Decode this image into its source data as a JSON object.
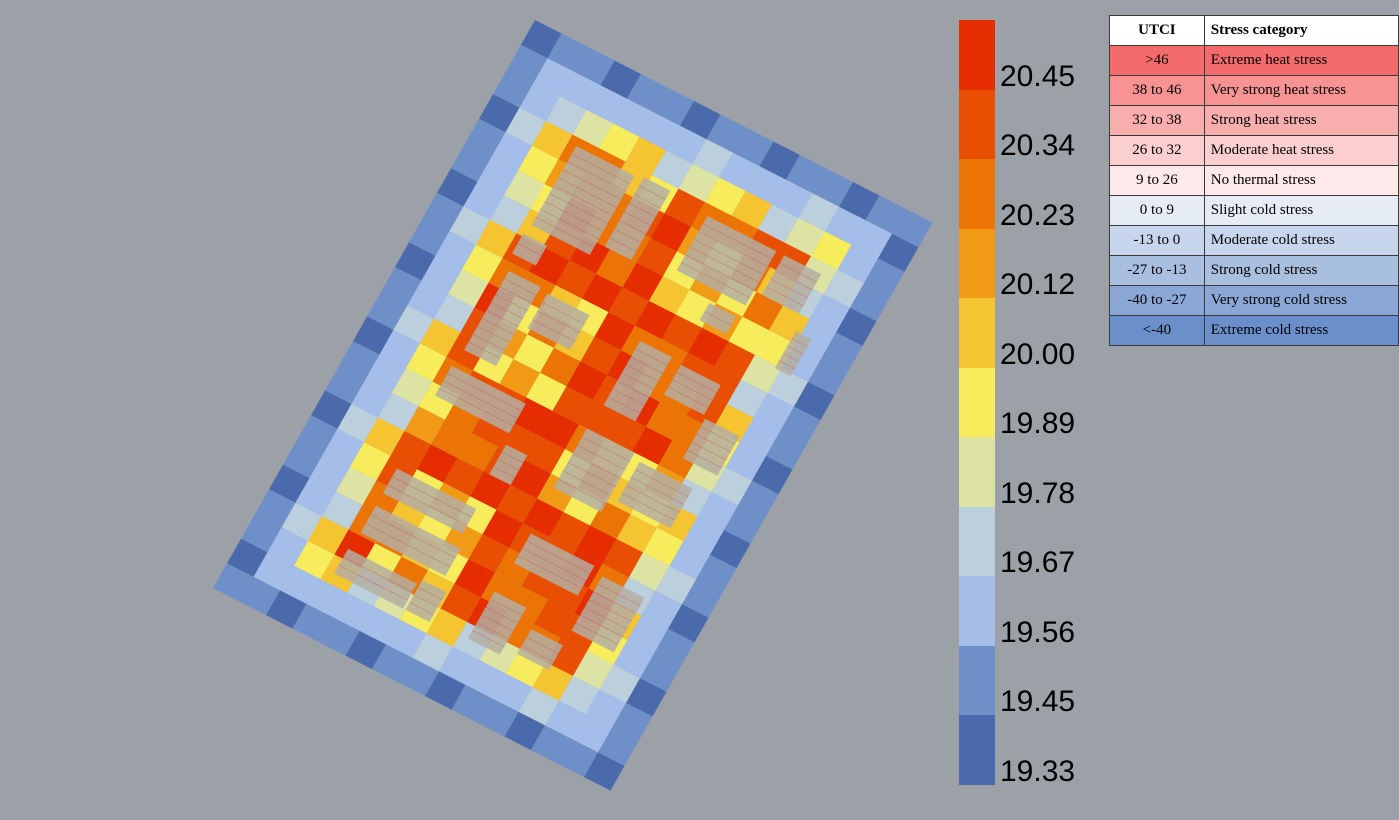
{
  "map": {
    "palette": [
      "#4b6aac",
      "#6f8fc8",
      "#a4bde9",
      "#bccfdc",
      "#dde3a2",
      "#f6ec5c",
      "#f5c431",
      "#f09a15",
      "#ec7405",
      "#e84f02",
      "#e62d00"
    ],
    "building_color": "#b4aea2"
  },
  "legend": {
    "colors": [
      "#e62d00",
      "#e84f02",
      "#ec7405",
      "#f09a15",
      "#f5c431",
      "#f6ec5c",
      "#dde3a2",
      "#bccfdc",
      "#a4bde9",
      "#6f8fc8",
      "#4b6aac"
    ],
    "ticks": [
      "20.45",
      "20.34",
      "20.23",
      "20.12",
      "20.00",
      "19.89",
      "19.78",
      "19.67",
      "19.56",
      "19.45",
      "19.33"
    ]
  },
  "table": {
    "header": {
      "utci": "UTCI",
      "category": "Stress category"
    },
    "rows": [
      {
        "utci": ">46",
        "category": "Extreme heat stress",
        "color": "#f46b6b"
      },
      {
        "utci": "38 to 46",
        "category": "Very strong heat stress",
        "color": "#f89393"
      },
      {
        "utci": "32 to 38",
        "category": "Strong heat stress",
        "color": "#f9aeae"
      },
      {
        "utci": "26 to 32",
        "category": "Moderate heat stress",
        "color": "#fbcfcf"
      },
      {
        "utci": "9 to 26",
        "category": "No thermal stress",
        "color": "#fde9e9"
      },
      {
        "utci": "0 to 9",
        "category": "Slight cold stress",
        "color": "#e6ecf6"
      },
      {
        "utci": "-13 to 0",
        "category": "Moderate cold stress",
        "color": "#c7d6ec"
      },
      {
        "utci": "-27 to -13",
        "category": "Strong cold stress",
        "color": "#a8bfe0"
      },
      {
        "utci": "-40 to -27",
        "category": "Very strong cold stress",
        "color": "#8aa7d6"
      },
      {
        "utci": "<-40",
        "category": "Extreme cold stress",
        "color": "#6b8fcb"
      }
    ]
  }
}
